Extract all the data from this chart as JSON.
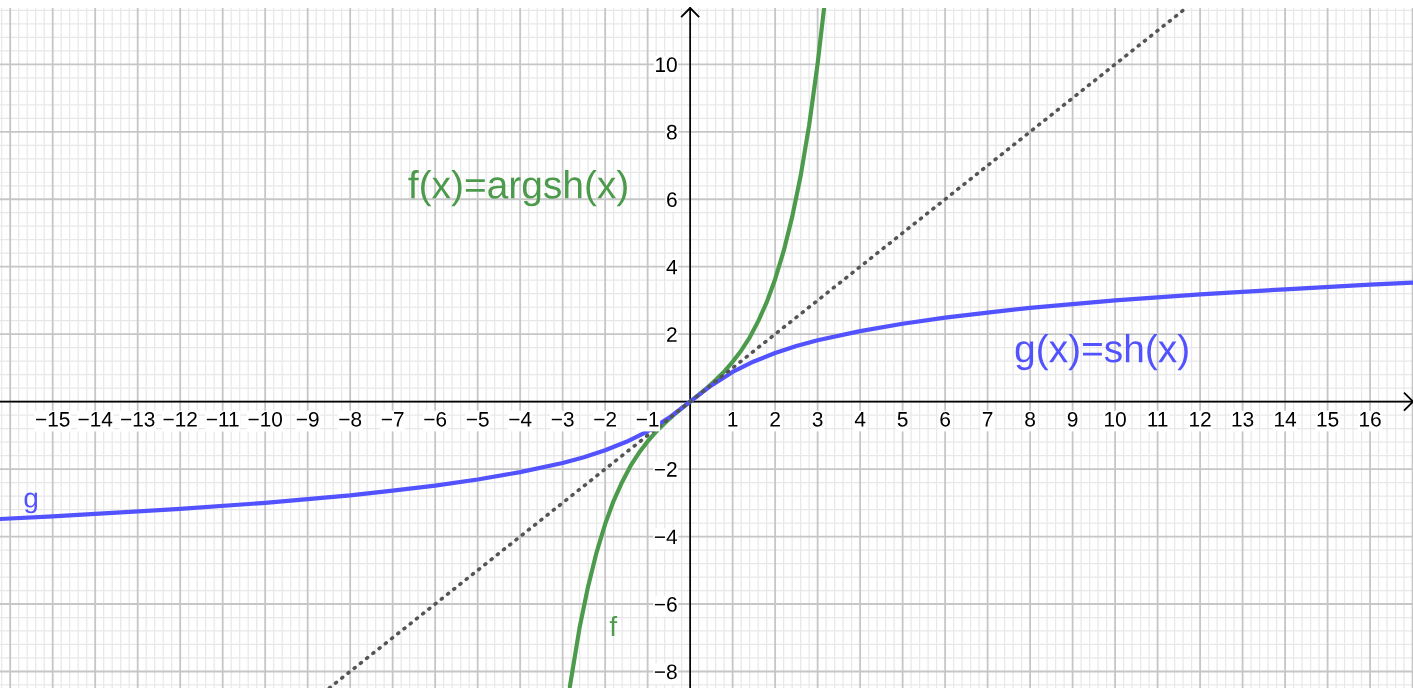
{
  "chart_data": {
    "type": "line",
    "xlim": [
      -16.24,
      17.01
    ],
    "ylim": [
      -8.49,
      11.67
    ],
    "xticks": [
      {
        "value": -15,
        "label": "−15"
      },
      {
        "value": -14,
        "label": "−14"
      },
      {
        "value": -13,
        "label": "−13"
      },
      {
        "value": -12,
        "label": "−12"
      },
      {
        "value": -11,
        "label": "−11"
      },
      {
        "value": -10,
        "label": "−10"
      },
      {
        "value": -9,
        "label": "−9"
      },
      {
        "value": -8,
        "label": "−8"
      },
      {
        "value": -7,
        "label": "−7"
      },
      {
        "value": -6,
        "label": "−6"
      },
      {
        "value": -5,
        "label": "−5"
      },
      {
        "value": -4,
        "label": "−4"
      },
      {
        "value": -3,
        "label": "−3"
      },
      {
        "value": -2,
        "label": "−2"
      },
      {
        "value": -1,
        "label": "−1"
      },
      1,
      2,
      3,
      4,
      5,
      6,
      7,
      8,
      9,
      10,
      11,
      12,
      13,
      14,
      15,
      16
    ],
    "yticks": [
      {
        "value": -8,
        "label": "−8"
      },
      {
        "value": -6,
        "label": "−6"
      },
      {
        "value": -4,
        "label": "−4"
      },
      {
        "value": -2,
        "label": "−2"
      },
      2,
      4,
      6,
      8,
      10
    ],
    "grid": true,
    "series": [
      {
        "name": "f",
        "color": "#4c9a4c",
        "line_style": "solid",
        "x": [
          -2.83,
          -2.6,
          -2.4,
          -2.2,
          -2,
          -1.8,
          -1.6,
          -1.4,
          -1.2,
          -1,
          -0.8,
          -0.6,
          -0.4,
          -0.2,
          0,
          0.2,
          0.4,
          0.6,
          0.8,
          1,
          1.2,
          1.4,
          1.6,
          1.8,
          2,
          2.2,
          2.4,
          2.6,
          2.8,
          3,
          3.15
        ],
        "values": [
          -8.45,
          -6.69,
          -5.47,
          -4.46,
          -3.63,
          -2.94,
          -2.38,
          -1.9,
          -1.51,
          -1.18,
          -0.89,
          -0.64,
          -0.41,
          -0.2,
          0,
          0.2,
          0.41,
          0.64,
          0.89,
          1.18,
          1.51,
          1.9,
          2.38,
          2.94,
          3.63,
          4.46,
          5.47,
          6.69,
          8.19,
          10.02,
          11.65
        ]
      },
      {
        "name": "g",
        "color": "#5252ff",
        "line_style": "solid",
        "x": [
          -16.24,
          -15,
          -14,
          -12,
          -10,
          -8,
          -7,
          -6,
          -5,
          -4,
          -3,
          -2.5,
          -2,
          -1.5,
          -1,
          -0.5,
          0,
          0.5,
          1,
          1.5,
          2,
          2.5,
          3,
          4,
          5,
          6,
          7,
          8,
          10,
          12,
          14,
          16,
          17.01
        ],
        "values": [
          -3.48,
          -3.4,
          -3.33,
          -3.18,
          -3.0,
          -2.78,
          -2.64,
          -2.49,
          -2.31,
          -2.09,
          -1.82,
          -1.65,
          -1.44,
          -1.19,
          -0.88,
          -0.48,
          0,
          0.48,
          0.88,
          1.19,
          1.44,
          1.65,
          1.82,
          2.09,
          2.31,
          2.49,
          2.64,
          2.78,
          3.0,
          3.18,
          3.33,
          3.47,
          3.53
        ]
      },
      {
        "color": "#555555",
        "line_style": "dotted",
        "x": [
          -8.49,
          0,
          11.67
        ],
        "values": [
          -8.49,
          0,
          11.67
        ]
      }
    ],
    "annotations": [
      "f(x)=argsh(x)",
      "g(x)=sh(x)"
    ]
  }
}
